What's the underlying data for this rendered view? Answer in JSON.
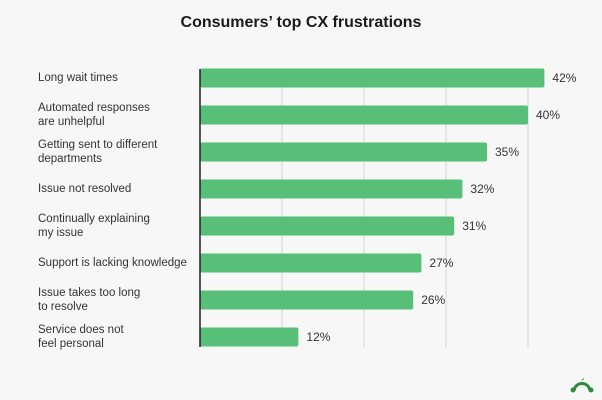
{
  "chart_data": {
    "type": "bar",
    "orientation": "horizontal",
    "title": "Consumers’ top CX frustrations",
    "categories": [
      "Long wait times",
      "Automated responses\nare unhelpful",
      "Getting sent to different\ndepartments",
      "Issue not resolved",
      "Continually explaining\nmy issue",
      "Support is lacking knowledge",
      "Issue takes too long\nto resolve",
      "Service does not\nfeel personal"
    ],
    "values": [
      42,
      40,
      35,
      32,
      31,
      27,
      26,
      12
    ],
    "data_labels": [
      "42%",
      "40%",
      "35%",
      "32%",
      "31%",
      "27%",
      "26%",
      "12%"
    ],
    "xlim": [
      0,
      42
    ],
    "grid": true,
    "gridlines": [
      10,
      20,
      30,
      40
    ],
    "bar_color": "#57bf77",
    "legend": "none"
  },
  "logo": {
    "name": "surveymonkey-logo-icon",
    "color": "#2e8b3a"
  }
}
